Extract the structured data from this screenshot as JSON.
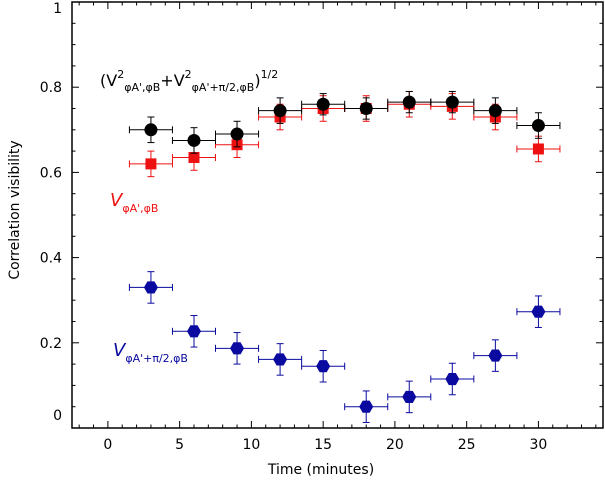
{
  "chart_data": {
    "type": "scatter",
    "xlabel": "Time (minutes)",
    "ylabel": "Correlation visibility",
    "xlim": [
      -2.5,
      34.5
    ],
    "ylim": [
      0,
      1
    ],
    "xticks": [
      0,
      5,
      10,
      15,
      20,
      25,
      30
    ],
    "yticks": [
      0,
      0.2,
      0.4,
      0.6,
      0.8,
      1
    ],
    "ytick_labels": [
      "0",
      "0.2",
      "0.4",
      "0.6",
      "0.8",
      "1"
    ],
    "grid": false,
    "x_error": 1.5,
    "series": [
      {
        "name": "(V²φA',φB+V²φA'+π/2,φB)^1/2",
        "color": "#000000",
        "marker": "circle",
        "x": [
          3,
          6,
          9,
          12,
          15,
          18,
          21,
          24,
          27,
          30
        ],
        "y": [
          0.7,
          0.675,
          0.69,
          0.745,
          0.76,
          0.75,
          0.765,
          0.765,
          0.745,
          0.71
        ],
        "yerr": [
          0.03,
          0.03,
          0.03,
          0.03,
          0.025,
          0.025,
          0.025,
          0.025,
          0.03,
          0.03
        ]
      },
      {
        "name": "VφA',φB",
        "color": "#ee1111",
        "marker": "square",
        "x": [
          3,
          6,
          9,
          12,
          15,
          18,
          21,
          24,
          27,
          30
        ],
        "y": [
          0.62,
          0.635,
          0.665,
          0.73,
          0.75,
          0.75,
          0.76,
          0.755,
          0.73,
          0.655
        ],
        "yerr": [
          0.03,
          0.03,
          0.03,
          0.03,
          0.03,
          0.03,
          0.03,
          0.03,
          0.03,
          0.03
        ]
      },
      {
        "name": "VφA'+π/2,φB",
        "color": "#0a0aa0",
        "marker": "hexagon",
        "x": [
          3,
          6,
          9,
          12,
          15,
          18,
          21,
          24,
          27,
          30
        ],
        "y": [
          0.33,
          0.227,
          0.187,
          0.161,
          0.145,
          0.05,
          0.073,
          0.115,
          0.17,
          0.273
        ],
        "yerr": [
          0.037,
          0.037,
          0.037,
          0.037,
          0.037,
          0.037,
          0.037,
          0.037,
          0.037,
          0.037
        ]
      }
    ],
    "annotations": {
      "black": {
        "base": "(V",
        "sup1": "2",
        "sub1": "φA',φB",
        "plus": "+V",
        "sup2": "2",
        "sub2": "φA'+π/2,φB",
        "close": ")",
        "sup3": "1/2"
      },
      "red": {
        "main": "V",
        "sub": "φA',φB"
      },
      "blue": {
        "main": "V",
        "sub": "φA'+π/2,φB"
      }
    }
  }
}
